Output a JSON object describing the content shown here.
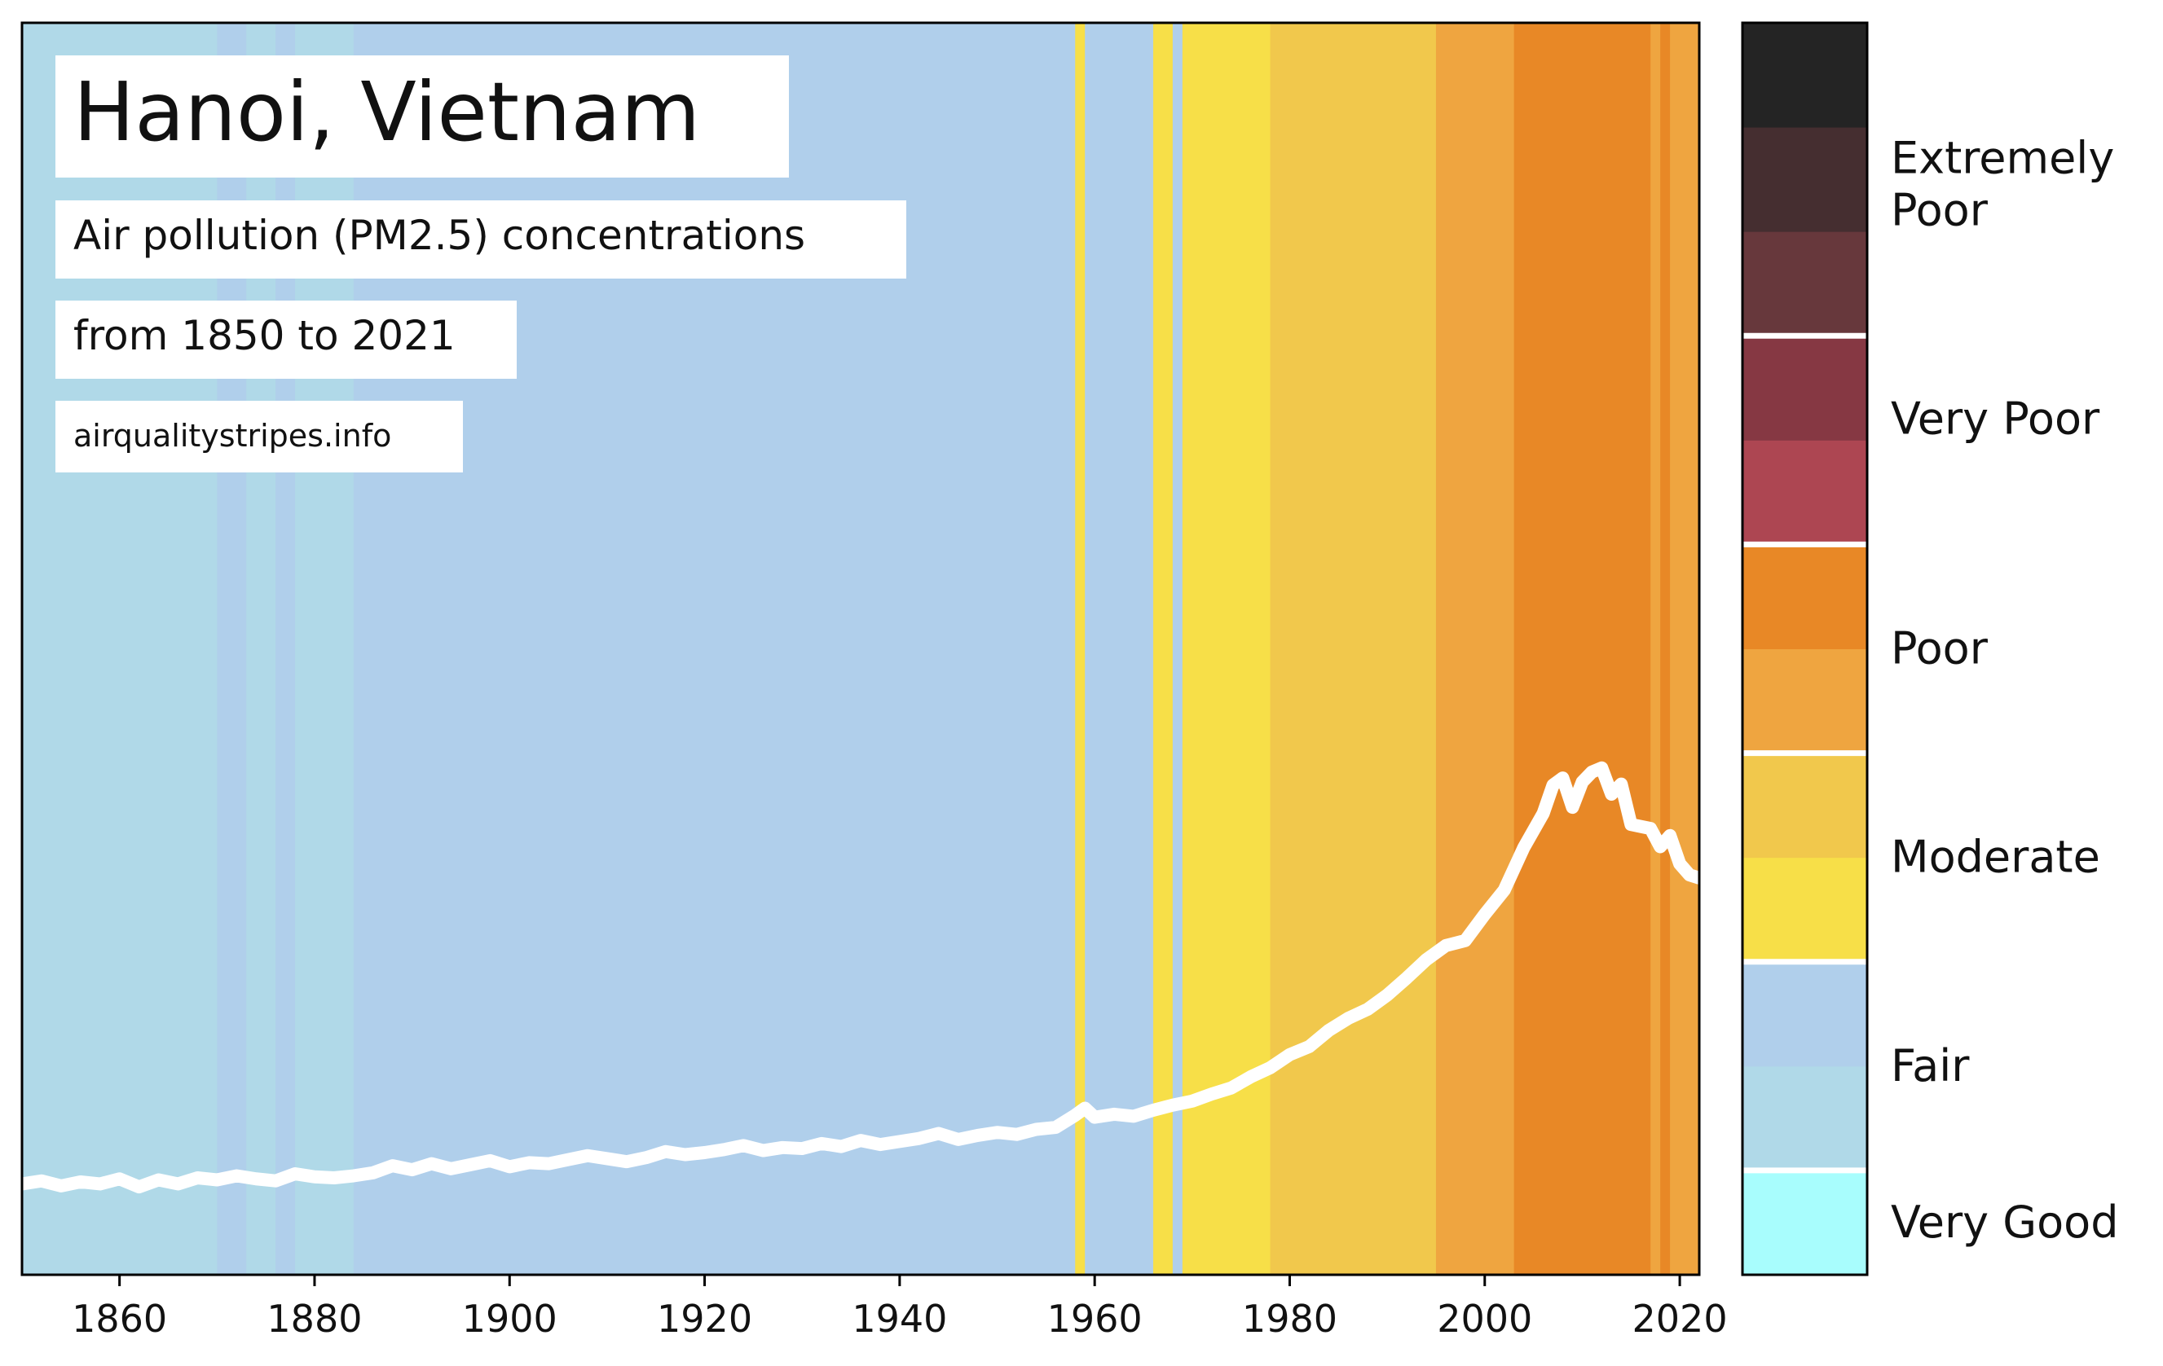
{
  "chart_data": {
    "type": "line",
    "title": "Hanoi, Vietnam",
    "subtitle_1": "Air pollution (PM2.5) concentrations",
    "subtitle_2": "from 1850 to 2021",
    "source": "airqualitystripes.info",
    "xlabel": "",
    "ylabel": "",
    "xlim": [
      1850,
      2022
    ],
    "x_ticks": [
      "1860",
      "1880",
      "1900",
      "1920",
      "1940",
      "1960",
      "1980",
      "2000",
      "2020"
    ],
    "ylim": [
      0,
      124
    ],
    "y_scale_note": "relative position on category scale (bottom 0 to top 124)",
    "series": [
      {
        "color": "#ffffff",
        "points": [
          [
            1850,
            9.0
          ],
          [
            1852,
            9.3
          ],
          [
            1854,
            8.8
          ],
          [
            1856,
            9.2
          ],
          [
            1858,
            9.0
          ],
          [
            1860,
            9.5
          ],
          [
            1862,
            8.7
          ],
          [
            1864,
            9.4
          ],
          [
            1866,
            9.0
          ],
          [
            1868,
            9.6
          ],
          [
            1870,
            9.4
          ],
          [
            1872,
            9.8
          ],
          [
            1874,
            9.5
          ],
          [
            1876,
            9.3
          ],
          [
            1878,
            10.0
          ],
          [
            1880,
            9.7
          ],
          [
            1882,
            9.6
          ],
          [
            1884,
            9.8
          ],
          [
            1886,
            10.1
          ],
          [
            1888,
            10.8
          ],
          [
            1890,
            10.4
          ],
          [
            1892,
            11.0
          ],
          [
            1894,
            10.5
          ],
          [
            1896,
            10.9
          ],
          [
            1898,
            11.3
          ],
          [
            1900,
            10.7
          ],
          [
            1902,
            11.1
          ],
          [
            1904,
            11.0
          ],
          [
            1906,
            11.4
          ],
          [
            1908,
            11.8
          ],
          [
            1910,
            11.5
          ],
          [
            1912,
            11.2
          ],
          [
            1914,
            11.6
          ],
          [
            1916,
            12.2
          ],
          [
            1918,
            11.9
          ],
          [
            1920,
            12.1
          ],
          [
            1922,
            12.4
          ],
          [
            1924,
            12.8
          ],
          [
            1926,
            12.3
          ],
          [
            1928,
            12.6
          ],
          [
            1930,
            12.5
          ],
          [
            1932,
            13.0
          ],
          [
            1934,
            12.7
          ],
          [
            1936,
            13.3
          ],
          [
            1938,
            12.9
          ],
          [
            1940,
            13.2
          ],
          [
            1942,
            13.5
          ],
          [
            1944,
            14.0
          ],
          [
            1946,
            13.4
          ],
          [
            1948,
            13.8
          ],
          [
            1950,
            14.1
          ],
          [
            1952,
            13.9
          ],
          [
            1954,
            14.4
          ],
          [
            1956,
            14.6
          ],
          [
            1958,
            15.8
          ],
          [
            1959,
            16.5
          ],
          [
            1960,
            15.6
          ],
          [
            1962,
            15.9
          ],
          [
            1964,
            15.7
          ],
          [
            1966,
            16.3
          ],
          [
            1968,
            16.8
          ],
          [
            1970,
            17.2
          ],
          [
            1972,
            17.9
          ],
          [
            1974,
            18.5
          ],
          [
            1976,
            19.6
          ],
          [
            1978,
            20.5
          ],
          [
            1980,
            21.8
          ],
          [
            1982,
            22.6
          ],
          [
            1984,
            24.2
          ],
          [
            1986,
            25.4
          ],
          [
            1988,
            26.3
          ],
          [
            1990,
            27.7
          ],
          [
            1992,
            29.4
          ],
          [
            1994,
            31.2
          ],
          [
            1996,
            32.6
          ],
          [
            1998,
            33.1
          ],
          [
            2000,
            35.7
          ],
          [
            2002,
            38.1
          ],
          [
            2004,
            42.3
          ],
          [
            2006,
            45.7
          ],
          [
            2007,
            48.5
          ],
          [
            2008,
            49.2
          ],
          [
            2009,
            46.3
          ],
          [
            2010,
            48.8
          ],
          [
            2011,
            49.8
          ],
          [
            2012,
            50.2
          ],
          [
            2013,
            47.6
          ],
          [
            2014,
            48.6
          ],
          [
            2015,
            44.6
          ],
          [
            2017,
            44.2
          ],
          [
            2018,
            42.4
          ],
          [
            2019,
            43.5
          ],
          [
            2020,
            40.7
          ],
          [
            2021,
            39.6
          ],
          [
            2022,
            39.3
          ]
        ]
      }
    ],
    "stripes": [
      {
        "from": 1850,
        "to": 1870,
        "level": "fair_light"
      },
      {
        "from": 1870,
        "to": 1873,
        "level": "fair"
      },
      {
        "from": 1873,
        "to": 1876,
        "level": "fair_light"
      },
      {
        "from": 1876,
        "to": 1878,
        "level": "fair"
      },
      {
        "from": 1878,
        "to": 1884,
        "level": "fair_light"
      },
      {
        "from": 1884,
        "to": 1958,
        "level": "fair"
      },
      {
        "from": 1958,
        "to": 1959,
        "level": "moderate"
      },
      {
        "from": 1959,
        "to": 1966,
        "level": "fair"
      },
      {
        "from": 1966,
        "to": 1968,
        "level": "moderate"
      },
      {
        "from": 1968,
        "to": 1969,
        "level": "fair"
      },
      {
        "from": 1969,
        "to": 1978,
        "level": "moderate"
      },
      {
        "from": 1978,
        "to": 1995,
        "level": "moderate_high"
      },
      {
        "from": 1995,
        "to": 1996,
        "level": "poor_low"
      },
      {
        "from": 1996,
        "to": 2003,
        "level": "poor_low"
      },
      {
        "from": 2003,
        "to": 2017,
        "level": "poor"
      },
      {
        "from": 2017,
        "to": 2018,
        "level": "poor_low"
      },
      {
        "from": 2018,
        "to": 2019,
        "level": "poor"
      },
      {
        "from": 2019,
        "to": 2022,
        "level": "poor_low"
      }
    ],
    "stripe_colors": {
      "fair_light": "#b0d9e8",
      "fair": "#b0cfeb",
      "moderate": "#f7df48",
      "moderate_high": "#f1c84c",
      "poor_low": "#efa540",
      "poor": "#e88826"
    },
    "legend": {
      "placement": "right",
      "segments": [
        {
          "level": 0,
          "color": "#a8fdfd"
        },
        {
          "level": 1,
          "color": "#b0d9e8"
        },
        {
          "level": 2,
          "color": "#b0cfeb"
        },
        {
          "level": 3,
          "color": "#f7df48"
        },
        {
          "level": 4,
          "color": "#f1c84c"
        },
        {
          "level": 5,
          "color": "#efa540"
        },
        {
          "level": 6,
          "color": "#e88826"
        },
        {
          "level": 7,
          "color": "#ad4652"
        },
        {
          "level": 8,
          "color": "#863843"
        },
        {
          "level": 9,
          "color": "#67383c"
        },
        {
          "level": 10,
          "color": "#452e30"
        },
        {
          "level": 11,
          "color": "#242424"
        }
      ],
      "separators_after_level": [
        0,
        2,
        4,
        6,
        8
      ],
      "labels": [
        {
          "text": "Very Good",
          "level_center": 0.5
        },
        {
          "text": "Fair",
          "level_center": 2.0
        },
        {
          "text": "Moderate",
          "level_center": 4.0
        },
        {
          "text": "Poor",
          "level_center": 6.0
        },
        {
          "text": "Very Poor",
          "level_center": 8.2
        },
        {
          "text": "Extremely",
          "level_center": 10.7
        },
        {
          "text": "Poor",
          "level_center": 10.2
        }
      ]
    }
  }
}
